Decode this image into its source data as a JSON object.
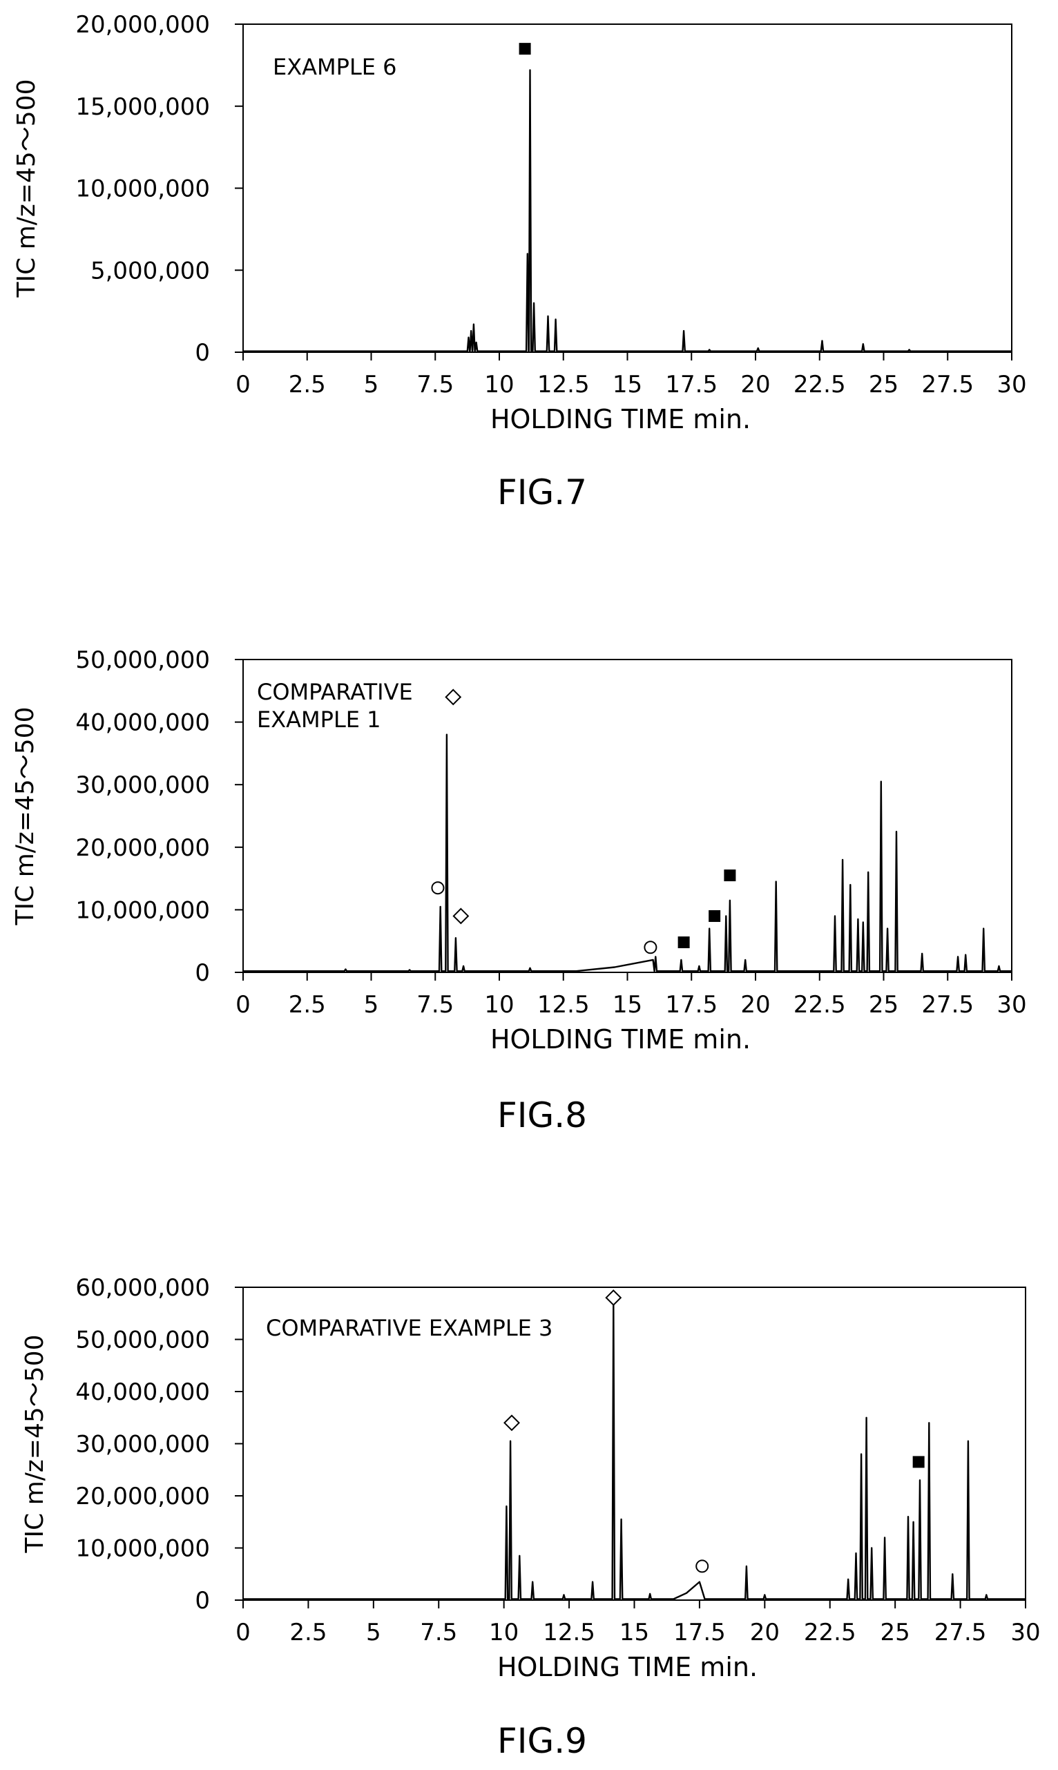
{
  "chart_data": [
    {
      "type": "line",
      "caption": "FIG.7",
      "annotation": [
        "EXAMPLE 6"
      ],
      "xlabel": "HOLDING TIME  min.",
      "ylabel": "TIC  m/z=45～500",
      "xlim": [
        0,
        30
      ],
      "ylim": [
        0,
        20000000
      ],
      "xticks": [
        0,
        2.5,
        5,
        7.5,
        10,
        12.5,
        15,
        17.5,
        20,
        22.5,
        25,
        27.5,
        30
      ],
      "yticks": [
        0,
        5000000,
        10000000,
        15000000,
        20000000
      ],
      "ytick_labels": [
        "0",
        "5,000,000",
        "10,000,000",
        "15,000,000",
        "20,000,000"
      ],
      "baseline": 60000,
      "series": [
        {
          "peaks": [
            {
              "x": 8.8,
              "y": 900000
            },
            {
              "x": 8.9,
              "y": 1300000
            },
            {
              "x": 9.0,
              "y": 1700000
            },
            {
              "x": 9.1,
              "y": 600000
            },
            {
              "x": 11.1,
              "y": 6000000
            },
            {
              "x": 11.2,
              "y": 17200000
            },
            {
              "x": 11.35,
              "y": 3000000
            },
            {
              "x": 11.9,
              "y": 2200000
            },
            {
              "x": 12.2,
              "y": 2000000
            },
            {
              "x": 17.2,
              "y": 1300000
            },
            {
              "x": 18.2,
              "y": 150000
            },
            {
              "x": 20.1,
              "y": 250000
            },
            {
              "x": 22.6,
              "y": 700000
            },
            {
              "x": 24.2,
              "y": 500000
            },
            {
              "x": 26.0,
              "y": 150000
            }
          ],
          "humps": []
        }
      ],
      "markers": [
        {
          "shape": "square",
          "x": 11.0,
          "y": 18500000
        }
      ]
    },
    {
      "type": "line",
      "caption": "FIG.8",
      "annotation": [
        "COMPARATIVE",
        "EXAMPLE 1"
      ],
      "xlabel": "HOLDING TIME  min.",
      "ylabel": "TIC  m/z=45～500",
      "xlim": [
        0,
        30
      ],
      "ylim": [
        0,
        50000000
      ],
      "xticks": [
        0,
        2.5,
        5,
        7.5,
        10,
        12.5,
        15,
        17.5,
        20,
        22.5,
        25,
        27.5,
        30
      ],
      "yticks": [
        0,
        10000000,
        20000000,
        30000000,
        40000000,
        50000000
      ],
      "ytick_labels": [
        "0",
        "10,000,000",
        "20,000,000",
        "30,000,000",
        "40,000,000",
        "50,000,000"
      ],
      "baseline": 200000,
      "series": [
        {
          "peaks": [
            {
              "x": 4.0,
              "y": 500000
            },
            {
              "x": 6.5,
              "y": 400000
            },
            {
              "x": 7.7,
              "y": 10500000
            },
            {
              "x": 7.95,
              "y": 38000000
            },
            {
              "x": 8.3,
              "y": 5500000
            },
            {
              "x": 8.6,
              "y": 1000000
            },
            {
              "x": 11.2,
              "y": 700000
            },
            {
              "x": 16.1,
              "y": 2500000
            },
            {
              "x": 17.1,
              "y": 2000000
            },
            {
              "x": 17.8,
              "y": 1000000
            },
            {
              "x": 18.2,
              "y": 7000000
            },
            {
              "x": 18.85,
              "y": 9000000
            },
            {
              "x": 19.0,
              "y": 11500000
            },
            {
              "x": 19.6,
              "y": 2000000
            },
            {
              "x": 20.8,
              "y": 14500000
            },
            {
              "x": 23.1,
              "y": 9000000
            },
            {
              "x": 23.4,
              "y": 18000000
            },
            {
              "x": 23.7,
              "y": 14000000
            },
            {
              "x": 24.0,
              "y": 8500000
            },
            {
              "x": 24.2,
              "y": 8000000
            },
            {
              "x": 24.4,
              "y": 16000000
            },
            {
              "x": 24.9,
              "y": 30500000
            },
            {
              "x": 25.15,
              "y": 7000000
            },
            {
              "x": 25.5,
              "y": 22500000
            },
            {
              "x": 26.5,
              "y": 3000000
            },
            {
              "x": 27.9,
              "y": 2500000
            },
            {
              "x": 28.2,
              "y": 2800000
            },
            {
              "x": 28.9,
              "y": 7000000
            },
            {
              "x": 29.5,
              "y": 1000000
            }
          ],
          "humps": [
            {
              "x0": 13.0,
              "x1": 16.4,
              "xpeak": 16.0,
              "y": 2000000
            }
          ]
        }
      ],
      "markers": [
        {
          "shape": "diamond",
          "x": 8.2,
          "y": 44000000
        },
        {
          "shape": "circle",
          "x": 7.6,
          "y": 13500000
        },
        {
          "shape": "diamond",
          "x": 8.5,
          "y": 9000000
        },
        {
          "shape": "circle",
          "x": 15.9,
          "y": 4000000
        },
        {
          "shape": "square",
          "x": 17.2,
          "y": 4800000
        },
        {
          "shape": "square",
          "x": 18.4,
          "y": 9000000
        },
        {
          "shape": "square",
          "x": 19.0,
          "y": 15500000
        }
      ]
    },
    {
      "type": "line",
      "caption": "FIG.9",
      "annotation": [
        "COMPARATIVE EXAMPLE 3"
      ],
      "xlabel": "HOLDING TIME  min.",
      "ylabel": "TIC  m/z=45～500",
      "xlim": [
        0,
        30
      ],
      "ylim": [
        0,
        60000000
      ],
      "xticks": [
        0,
        2.5,
        5,
        7.5,
        10,
        12.5,
        15,
        17.5,
        20,
        22.5,
        25,
        27.5,
        30
      ],
      "yticks": [
        0,
        10000000,
        20000000,
        30000000,
        40000000,
        50000000,
        60000000
      ],
      "ytick_labels": [
        "0",
        "10,000,000",
        "20,000,000",
        "30,000,000",
        "40,000,000",
        "50,000,000",
        "60,000,000"
      ],
      "baseline": 200000,
      "series": [
        {
          "peaks": [
            {
              "x": 10.1,
              "y": 18000000
            },
            {
              "x": 10.25,
              "y": 30500000
            },
            {
              "x": 10.6,
              "y": 8500000
            },
            {
              "x": 11.1,
              "y": 3500000
            },
            {
              "x": 12.3,
              "y": 1000000
            },
            {
              "x": 13.4,
              "y": 3500000
            },
            {
              "x": 14.2,
              "y": 57000000
            },
            {
              "x": 14.5,
              "y": 15500000
            },
            {
              "x": 15.6,
              "y": 1200000
            },
            {
              "x": 19.3,
              "y": 6500000
            },
            {
              "x": 20.0,
              "y": 1000000
            },
            {
              "x": 23.2,
              "y": 4000000
            },
            {
              "x": 23.5,
              "y": 9000000
            },
            {
              "x": 23.7,
              "y": 28000000
            },
            {
              "x": 23.9,
              "y": 35000000
            },
            {
              "x": 24.1,
              "y": 10000000
            },
            {
              "x": 24.6,
              "y": 12000000
            },
            {
              "x": 25.5,
              "y": 16000000
            },
            {
              "x": 25.7,
              "y": 15000000
            },
            {
              "x": 25.95,
              "y": 23000000
            },
            {
              "x": 26.3,
              "y": 34000000
            },
            {
              "x": 27.2,
              "y": 5000000
            },
            {
              "x": 27.8,
              "y": 30500000
            },
            {
              "x": 28.5,
              "y": 1000000
            }
          ],
          "humps": [
            {
              "x0": 16.5,
              "x1": 17.7,
              "xpeak": 17.5,
              "y": 3500000
            }
          ]
        }
      ],
      "markers": [
        {
          "shape": "diamond",
          "x": 10.3,
          "y": 34000000
        },
        {
          "shape": "diamond",
          "x": 14.2,
          "y": 58000000
        },
        {
          "shape": "circle",
          "x": 17.6,
          "y": 6500000
        },
        {
          "shape": "square",
          "x": 25.9,
          "y": 26500000
        }
      ]
    }
  ]
}
